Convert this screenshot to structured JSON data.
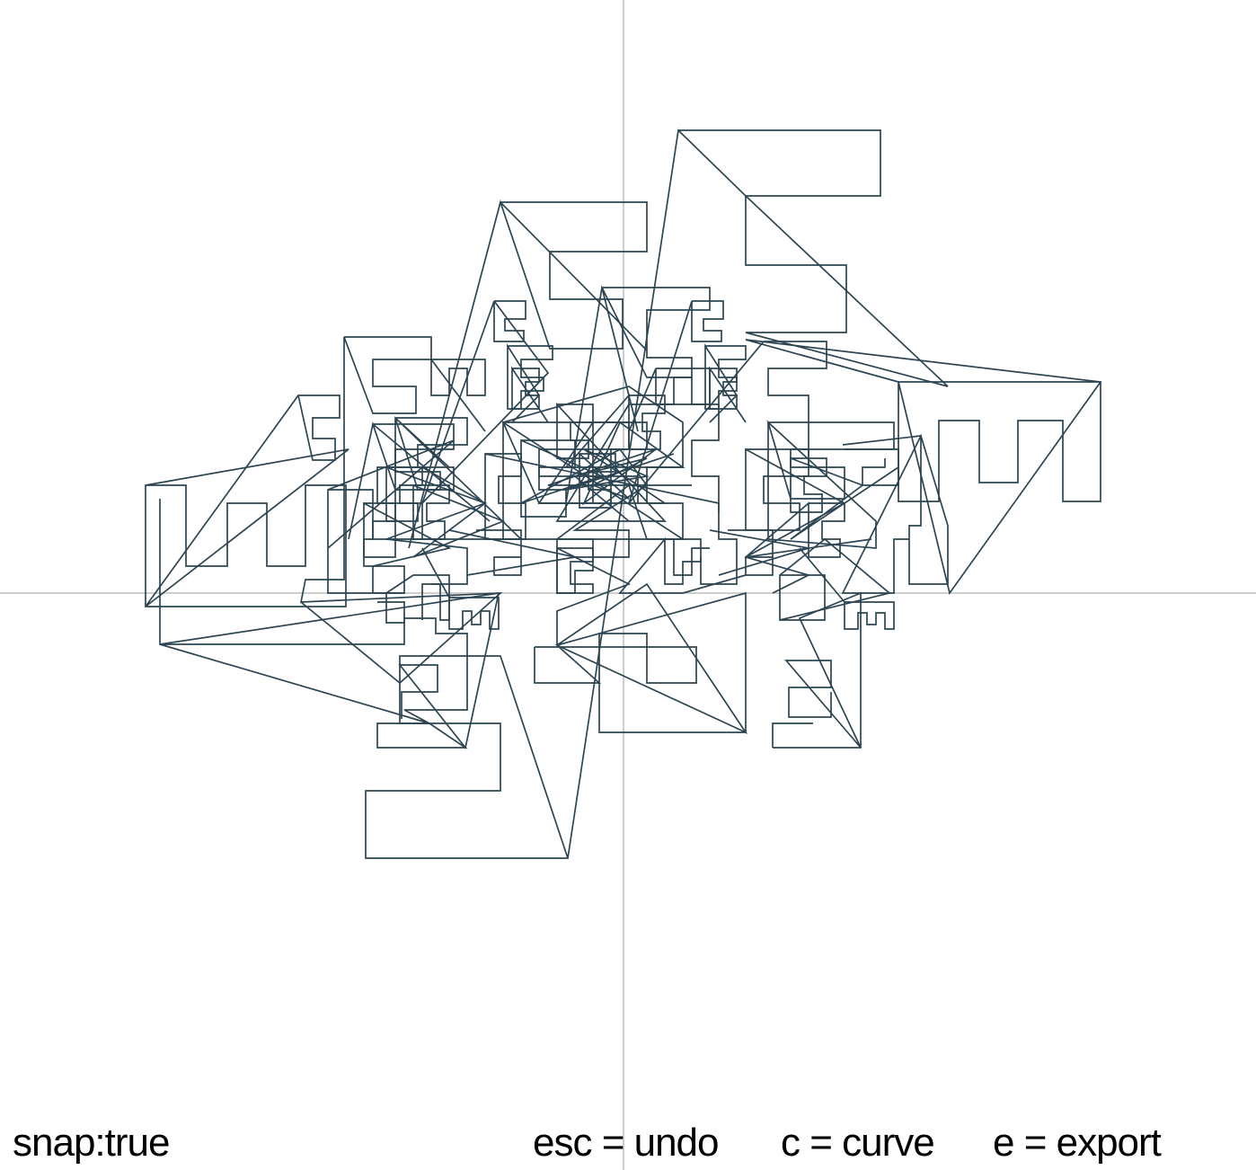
{
  "status": {
    "snap": "snap:true"
  },
  "shortcuts": {
    "undo": "esc = undo",
    "curve": "c = curve",
    "export": "e = export"
  },
  "colors": {
    "stroke": "#2d4552",
    "axis": "#bdbdbd",
    "background": "#ffffff"
  }
}
